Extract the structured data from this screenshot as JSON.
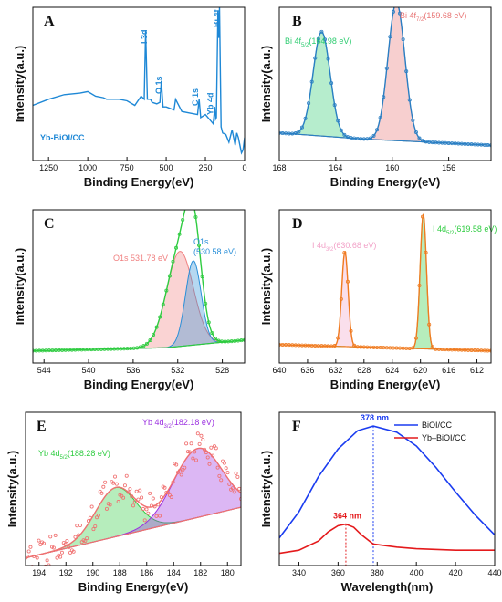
{
  "chart_data": [
    {
      "panel": "A",
      "type": "line",
      "xlabel": "Binding Energy(eV)",
      "ylabel": "Intensity(a.u.)",
      "xlim": [
        1350,
        0
      ],
      "xticks": [
        1250,
        1000,
        750,
        500,
        250,
        0
      ],
      "ylim": [
        0,
        100
      ],
      "x": [
        1350,
        1250,
        1150,
        1050,
        1000,
        950,
        900,
        880,
        850,
        800,
        750,
        700,
        660,
        640,
        631,
        620,
        600,
        590,
        560,
        540,
        531,
        520,
        500,
        450,
        440,
        400,
        350,
        300,
        290,
        280,
        250,
        200,
        190,
        185,
        180,
        170,
        165,
        160,
        155,
        150,
        140,
        120,
        100,
        80,
        60,
        50,
        40,
        30,
        20,
        10,
        0
      ],
      "values": [
        36,
        40,
        43,
        44,
        45,
        42,
        41,
        40,
        40,
        40,
        39,
        36,
        42,
        40,
        85,
        40,
        40,
        38,
        37,
        38,
        52,
        35,
        35,
        33,
        40,
        32,
        31,
        30,
        40,
        28,
        30,
        24,
        35,
        27,
        28,
        98,
        80,
        100,
        60,
        22,
        18,
        17,
        12,
        20,
        10,
        18,
        15,
        10,
        5,
        7,
        15
      ],
      "colors": [
        "#1e88d6"
      ],
      "peak_labels": [
        "I 3d",
        "O 1s",
        "C 1s",
        "Yb 4d",
        "Bi 4f"
      ],
      "sample_label": "Yb-BiOI/CC"
    },
    {
      "panel": "B",
      "type": "line",
      "xlabel": "Binding Energy(eV)",
      "ylabel": "Intensity(a.u.)",
      "xlim": [
        168,
        153
      ],
      "xticks": [
        168,
        164,
        160,
        156
      ],
      "ylim": [
        0,
        100
      ],
      "series": [
        {
          "name": "Bi 4f5/2(164.98 eV)",
          "values": [
            [
              165.0,
              68
            ]
          ],
          "width": 0.6
        },
        {
          "name": "Bi 4f7/2(159.68 eV)",
          "values": [
            [
              159.7,
              90
            ]
          ],
          "width": 0.6
        }
      ],
      "baseline": [
        [
          168,
          18
        ],
        [
          162,
          14
        ],
        [
          153,
          10
        ]
      ],
      "peak_labels": [
        "Bi 4f",
        "5/2",
        "(164.98 eV)",
        "Bi 4f",
        "7/2",
        "(159.68 eV)"
      ],
      "colors": [
        "#2ecc71",
        "#e87575",
        "#2a7fc4"
      ]
    },
    {
      "panel": "C",
      "type": "line",
      "xlabel": "Binding Energy(eV)",
      "ylabel": "Intensity(a.u.)",
      "xlim": [
        545,
        526
      ],
      "xticks": [
        544,
        540,
        536,
        532,
        528
      ],
      "ylim": [
        0,
        100
      ],
      "series": [
        {
          "name": "O1s 531.78 eV",
          "values": [
            [
              531.8,
              62
            ]
          ],
          "width": 1.2
        },
        {
          "name": "O1s (530.58 eV)",
          "values": [
            [
              530.6,
              55
            ]
          ],
          "width": 0.7
        }
      ],
      "baseline": [
        [
          545,
          8
        ],
        [
          533,
          10
        ],
        [
          526,
          15
        ]
      ],
      "peak_labels": [
        "O1s 531.78 eV",
        "O1s",
        "(530.58 eV)"
      ],
      "colors": [
        "#f08080",
        "#2a8fd8",
        "#2ecc40"
      ]
    },
    {
      "panel": "D",
      "type": "line",
      "xlabel": "Binding Energy(eV)",
      "ylabel": "Intensity(a.u.)",
      "xlim": [
        640,
        610
      ],
      "xticks": [
        640,
        636,
        632,
        628,
        624,
        620,
        616,
        612
      ],
      "ylim": [
        0,
        100
      ],
      "series": [
        {
          "name": "I 4d3/2(630.68 eV)",
          "values": [
            [
              630.7,
              62
            ]
          ],
          "width": 0.45
        },
        {
          "name": "I 4d5/2(619.58 eV)",
          "values": [
            [
              619.6,
              88
            ]
          ],
          "width": 0.45
        }
      ],
      "baseline": [
        [
          640,
          12
        ],
        [
          610,
          8
        ]
      ],
      "peak_labels": [
        "I 4d",
        "3/2",
        "(630.68 eV)",
        "I 4d",
        "5/2",
        "(619.58 eV)"
      ],
      "colors": [
        "#f2a2c8",
        "#2ecc40",
        "#f07b20"
      ]
    },
    {
      "panel": "E",
      "type": "line",
      "xlabel": "Binding Energy(eV)",
      "ylabel": "Intensity(a.u.)",
      "xlim": [
        195,
        179
      ],
      "xticks": [
        194,
        192,
        190,
        188,
        186,
        184,
        182,
        180
      ],
      "ylim": [
        0,
        100
      ],
      "series": [
        {
          "name": "Yb 4d5/2(188.28 eV)",
          "values": [
            [
              188.3,
              32
            ]
          ],
          "width": 1.5
        },
        {
          "name": "Yb 4d3/2(182.18 eV)",
          "values": [
            [
              182.2,
              45
            ]
          ],
          "width": 1.8
        }
      ],
      "baseline": [
        [
          195,
          5
        ],
        [
          179,
          38
        ]
      ],
      "peak_labels": [
        "Yb 4d",
        "5/2",
        "(188.28 eV)",
        "Yb 4d",
        "3/2",
        "(182.18 eV)"
      ],
      "colors": [
        "#2ecc40",
        "#9b30e0",
        "#f07070"
      ]
    },
    {
      "panel": "F",
      "type": "line",
      "xlabel": "Wavelength(nm)",
      "ylabel": "Intensity(a.u.)",
      "xlim": [
        330,
        440
      ],
      "xticks": [
        340,
        360,
        380,
        400,
        420,
        440
      ],
      "ylim": [
        0,
        100
      ],
      "series": [
        {
          "name": "BiOI/CC",
          "x": [
            330,
            340,
            350,
            360,
            370,
            378,
            390,
            400,
            410,
            420,
            430,
            440
          ],
          "values": [
            18,
            35,
            58,
            76,
            88,
            91,
            87,
            78,
            64,
            48,
            33,
            20
          ]
        },
        {
          "name": "Yb–BiOI/CC",
          "x": [
            330,
            340,
            350,
            355,
            360,
            364,
            368,
            372,
            378,
            390,
            400,
            420,
            440
          ],
          "values": [
            8,
            10,
            16,
            22,
            26,
            27,
            25,
            20,
            14,
            12,
            11,
            10,
            10
          ]
        }
      ],
      "peak_labels": [
        "378 nm",
        "364 nm"
      ],
      "peak_positions": [
        378,
        364
      ],
      "colors": [
        "#1a3cf0",
        "#e41a1c"
      ]
    }
  ]
}
